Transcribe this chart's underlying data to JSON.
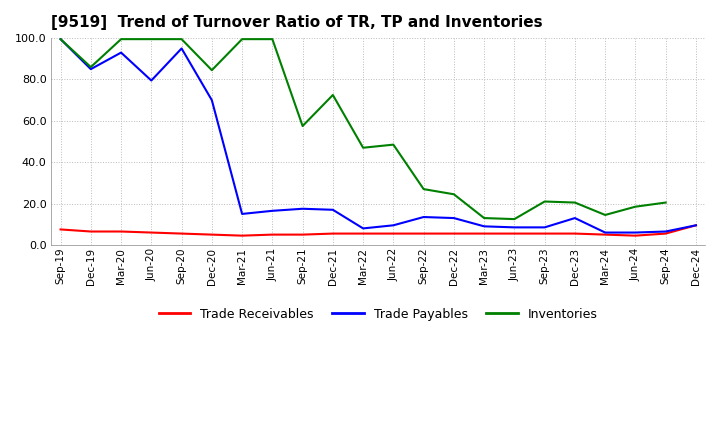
{
  "title": "[9519]  Trend of Turnover Ratio of TR, TP and Inventories",
  "xlabels": [
    "Sep-19",
    "Dec-19",
    "Mar-20",
    "Jun-20",
    "Sep-20",
    "Dec-20",
    "Mar-21",
    "Jun-21",
    "Sep-21",
    "Dec-21",
    "Mar-22",
    "Jun-22",
    "Sep-22",
    "Dec-22",
    "Mar-23",
    "Jun-23",
    "Sep-23",
    "Dec-23",
    "Mar-24",
    "Jun-24",
    "Sep-24",
    "Dec-24"
  ],
  "ylim": [
    0.0,
    100.0
  ],
  "yticks": [
    0.0,
    20.0,
    40.0,
    60.0,
    80.0,
    100.0
  ],
  "trade_receivables": [
    7.5,
    6.5,
    6.5,
    6.0,
    5.5,
    5.0,
    4.5,
    5.0,
    5.0,
    5.5,
    5.5,
    5.5,
    5.5,
    5.5,
    5.5,
    5.5,
    5.5,
    5.5,
    5.0,
    4.5,
    5.5,
    9.5
  ],
  "trade_payables": [
    99.5,
    85.0,
    93.0,
    79.5,
    95.0,
    70.0,
    15.0,
    16.5,
    17.5,
    17.0,
    8.0,
    9.5,
    13.5,
    13.0,
    9.0,
    8.5,
    8.5,
    13.0,
    6.0,
    6.0,
    6.5,
    9.5
  ],
  "inventories": [
    99.5,
    86.0,
    99.5,
    99.5,
    99.5,
    84.5,
    99.5,
    99.5,
    57.5,
    72.5,
    47.0,
    48.5,
    27.0,
    24.5,
    13.0,
    12.5,
    21.0,
    20.5,
    14.5,
    18.5,
    20.5,
    null
  ],
  "tr_color": "#ff0000",
  "tp_color": "#0000ff",
  "inv_color": "#008000",
  "background_color": "#ffffff",
  "grid_color": "#bbbbbb",
  "legend_labels": [
    "Trade Receivables",
    "Trade Payables",
    "Inventories"
  ],
  "title_fontsize": 11,
  "tick_fontsize": 7.5,
  "ytick_fontsize": 8,
  "linewidth": 1.5
}
